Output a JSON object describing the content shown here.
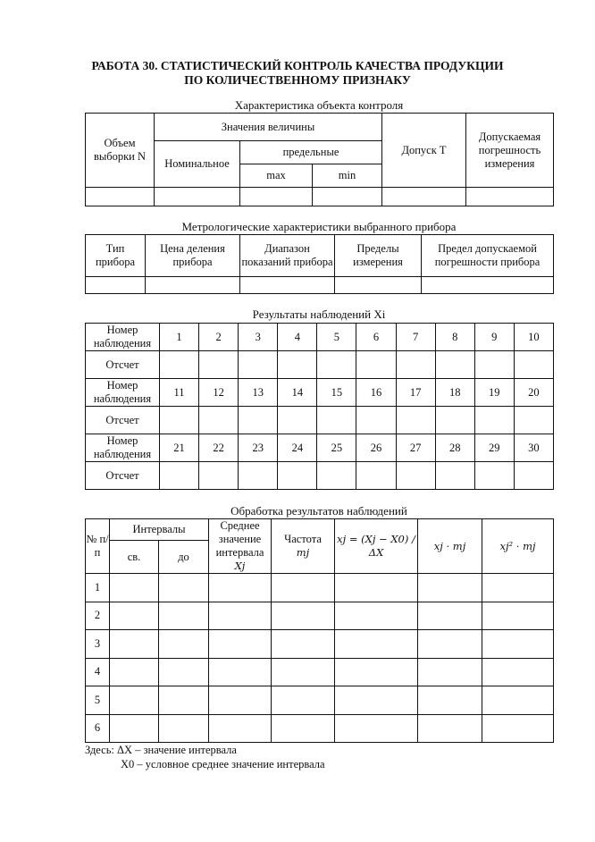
{
  "title_line1": "РАБОТА 30. СТАТИСТИЧЕСКИЙ КОНТРОЛЬ КАЧЕСТВА ПРОДУКЦИИ",
  "title_line2": "ПО КОЛИЧЕСТВЕННОМУ ПРИЗНАКУ",
  "table1": {
    "caption": "Характеристика объекта контроля",
    "h_n": "Объем выборки N",
    "h_values": "Значения величины",
    "h_nominal": "Номинальное",
    "h_limits": "предельные",
    "h_max": "max",
    "h_min": "min",
    "h_tol": "Допуск Т",
    "h_err": "Допускаемая погрешность измерения"
  },
  "table2": {
    "caption": "Метрологические характеристики выбранного прибора",
    "headers": [
      "Тип прибора",
      "Цена деления прибора",
      "Диапазон показаний прибора",
      "Пределы измерения",
      "Предел допускаемой погрешности прибора"
    ]
  },
  "table3": {
    "caption": "Результаты наблюдений Xi",
    "num_label": "Номер наблюдения",
    "reading_label": "Отсчет",
    "groups": [
      [
        "1",
        "2",
        "3",
        "4",
        "5",
        "6",
        "7",
        "8",
        "9",
        "10"
      ],
      [
        "11",
        "12",
        "13",
        "14",
        "15",
        "16",
        "17",
        "18",
        "19",
        "20"
      ],
      [
        "21",
        "22",
        "23",
        "24",
        "25",
        "26",
        "27",
        "28",
        "29",
        "30"
      ]
    ]
  },
  "table4": {
    "caption": "Обработка результатов наблюдений",
    "h_no": "№ п/п",
    "h_intervals": "Интервалы",
    "h_from": "св.",
    "h_to": "до",
    "h_mean": "Среднее значение интервала",
    "h_mean_sym": "Xj",
    "h_freq": "Частота",
    "h_freq_sym": "mj",
    "h_xj": "xj = (Xj − X0) / ΔX",
    "h_xm": "xj · mj",
    "h_x2m": "xj² · mj",
    "rows": [
      "1",
      "2",
      "3",
      "4",
      "5",
      "6"
    ]
  },
  "notes": {
    "line1": "Здесь: ΔX – значение интервала",
    "line2": "X0 – условное среднее значение интервала"
  }
}
